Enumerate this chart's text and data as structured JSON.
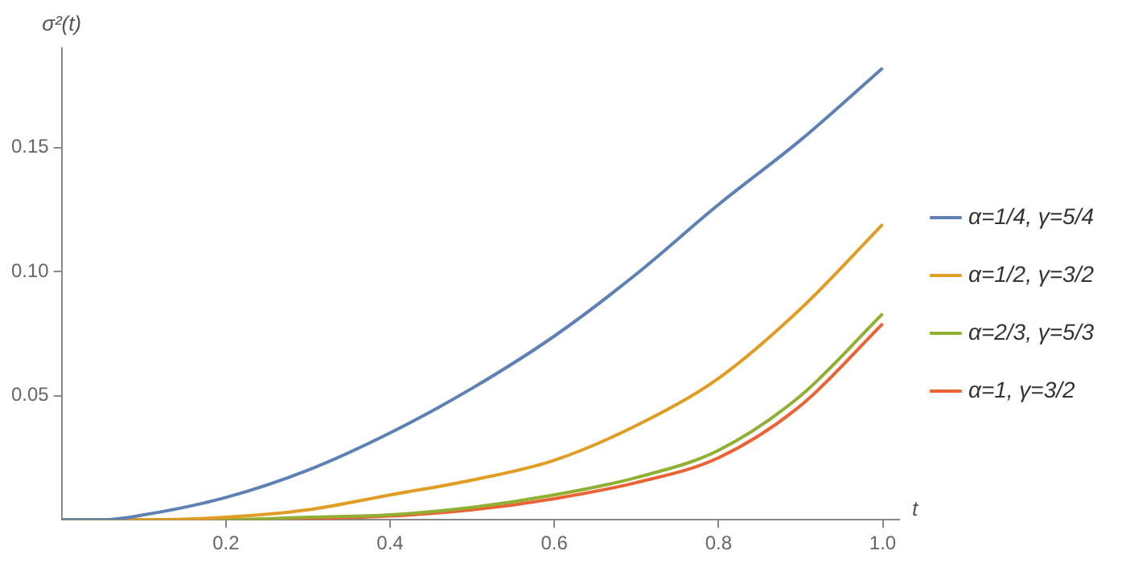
{
  "chart_data": {
    "type": "line",
    "xlabel": "t",
    "ylabel": "σ²(t)",
    "xlim": [
      0,
      1.02
    ],
    "ylim": [
      0,
      0.19
    ],
    "xticks": [
      0.2,
      0.4,
      0.6,
      0.8,
      {
        "value": 1,
        "label": "1.0"
      }
    ],
    "yticks": [
      0.05,
      {
        "value": 0.1,
        "label": "0.10"
      },
      0.15
    ],
    "grid": false,
    "legend": "right",
    "marker": "none",
    "line_style": "solid",
    "x": [
      0,
      0.05,
      0.1,
      0.2,
      0.3,
      0.4,
      0.5,
      0.6,
      0.7,
      0.8,
      0.9,
      1.0
    ],
    "series": [
      {
        "name": "α=1/4, γ=5/4",
        "color": "#5e81b5",
        "values": [
          0,
          0,
          0.002,
          0.009,
          0.02,
          0.035,
          0.053,
          0.074,
          0.099,
          0.127,
          0.153,
          0.182
        ]
      },
      {
        "name": "α=1/2, γ=3/2",
        "color": "#e19c24",
        "values": [
          0,
          0,
          0,
          0.001,
          0.004,
          0.01,
          0.016,
          0.024,
          0.038,
          0.057,
          0.085,
          0.119
        ]
      },
      {
        "name": "α=2/3, γ=5/3",
        "color": "#8fb032",
        "values": [
          0,
          0,
          0,
          0,
          0.001,
          0.002,
          0.005,
          0.01,
          0.017,
          0.028,
          0.05,
          0.083
        ]
      },
      {
        "name": "α=1, γ=3/2",
        "color": "#eb6235",
        "values": [
          0,
          0,
          0,
          0,
          0.0005,
          0.0015,
          0.004,
          0.0085,
          0.015,
          0.025,
          0.046,
          0.079
        ]
      }
    ]
  }
}
